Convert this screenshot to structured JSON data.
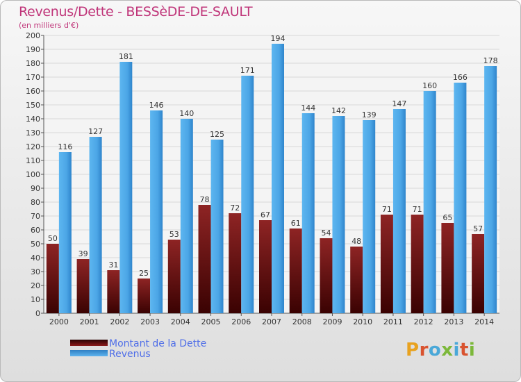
{
  "title": "Revenus/Dette - BESSèDE-DE-SAULT",
  "subtitle": "(en milliers d'€)",
  "logo": "Proxiti",
  "colors": {
    "title": "#c0367a",
    "debt": "#6b0a0a",
    "revenue": "#4ca6e6",
    "legend_text": "#4f6ee8"
  },
  "chart_data": {
    "type": "bar",
    "categories": [
      "2000",
      "2001",
      "2002",
      "2003",
      "2004",
      "2005",
      "2006",
      "2007",
      "2008",
      "2009",
      "2010",
      "2011",
      "2012",
      "2013",
      "2014"
    ],
    "series": [
      {
        "name": "Montant de la Dette",
        "values": [
          50,
          39,
          31,
          25,
          53,
          78,
          72,
          67,
          61,
          54,
          48,
          71,
          71,
          65,
          57
        ]
      },
      {
        "name": "Revenus",
        "values": [
          116,
          127,
          181,
          146,
          140,
          125,
          171,
          194,
          144,
          142,
          139,
          147,
          160,
          166,
          178
        ]
      }
    ],
    "ylim": [
      0,
      200
    ],
    "yticks": [
      0,
      10,
      20,
      30,
      40,
      50,
      60,
      70,
      80,
      90,
      100,
      110,
      120,
      130,
      140,
      150,
      160,
      170,
      180,
      190,
      200
    ],
    "grid": true,
    "legend_position": "bottom-left"
  }
}
